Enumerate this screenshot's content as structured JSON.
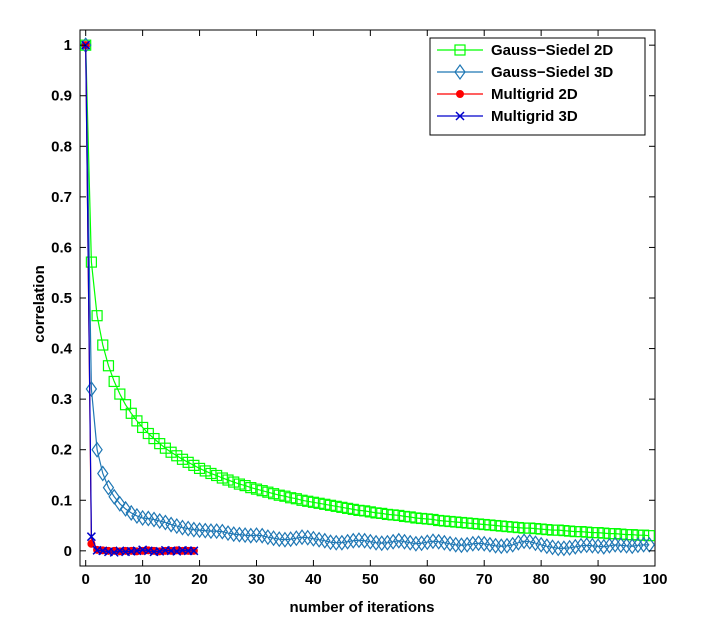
{
  "chart_data": {
    "type": "line",
    "title": "",
    "xlabel": "number of iterations",
    "ylabel": "correlation",
    "xlim": [
      -1,
      100
    ],
    "ylim": [
      -0.03,
      1.03
    ],
    "xticks": [
      "0",
      "10",
      "20",
      "30",
      "40",
      "50",
      "60",
      "70",
      "80",
      "90",
      "100"
    ],
    "yticks": [
      "0",
      "0.1",
      "0.2",
      "0.3",
      "0.4",
      "0.5",
      "0.6",
      "0.7",
      "0.8",
      "0.9",
      "1"
    ],
    "grid": false,
    "legend_position": "top-right",
    "series": [
      {
        "name": "Gauss−Siedel 2D",
        "color": "#00ff00",
        "marker": "square",
        "x": [
          0,
          1,
          2,
          3,
          4,
          5,
          6,
          7,
          8,
          9,
          10,
          11,
          12,
          13,
          14,
          15,
          16,
          17,
          18,
          19,
          20,
          21,
          22,
          23,
          24,
          25,
          26,
          27,
          28,
          29,
          30,
          31,
          32,
          33,
          34,
          35,
          36,
          37,
          38,
          39,
          40,
          41,
          42,
          43,
          44,
          45,
          46,
          47,
          48,
          49,
          50,
          51,
          52,
          53,
          54,
          55,
          56,
          57,
          58,
          59,
          60,
          61,
          62,
          63,
          64,
          65,
          66,
          67,
          68,
          69,
          70,
          71,
          72,
          73,
          74,
          75,
          76,
          77,
          78,
          79,
          80,
          81,
          82,
          83,
          84,
          85,
          86,
          87,
          88,
          89,
          90,
          91,
          92,
          93,
          94,
          95,
          96,
          97,
          98,
          99
        ],
        "y": [
          1.0,
          0.571,
          0.465,
          0.407,
          0.366,
          0.335,
          0.31,
          0.289,
          0.272,
          0.257,
          0.244,
          0.232,
          0.222,
          0.212,
          0.203,
          0.195,
          0.188,
          0.181,
          0.175,
          0.169,
          0.163,
          0.158,
          0.153,
          0.149,
          0.144,
          0.14,
          0.136,
          0.132,
          0.129,
          0.125,
          0.122,
          0.119,
          0.116,
          0.113,
          0.11,
          0.108,
          0.105,
          0.103,
          0.1,
          0.098,
          0.096,
          0.094,
          0.092,
          0.09,
          0.088,
          0.086,
          0.084,
          0.082,
          0.08,
          0.079,
          0.077,
          0.075,
          0.074,
          0.072,
          0.071,
          0.07,
          0.068,
          0.067,
          0.065,
          0.064,
          0.063,
          0.062,
          0.06,
          0.059,
          0.058,
          0.057,
          0.056,
          0.055,
          0.054,
          0.053,
          0.052,
          0.051,
          0.05,
          0.049,
          0.048,
          0.047,
          0.046,
          0.045,
          0.045,
          0.044,
          0.043,
          0.042,
          0.041,
          0.041,
          0.04,
          0.039,
          0.038,
          0.038,
          0.037,
          0.036,
          0.036,
          0.035,
          0.034,
          0.034,
          0.033,
          0.032,
          0.032,
          0.031,
          0.031,
          0.03
        ]
      },
      {
        "name": "Gauss−Siedel 3D",
        "color": "#1f77b4",
        "marker": "diamond",
        "x": [
          0,
          1,
          2,
          3,
          4,
          5,
          6,
          7,
          8,
          9,
          10,
          11,
          12,
          13,
          14,
          15,
          16,
          17,
          18,
          19,
          20,
          21,
          22,
          23,
          24,
          25,
          26,
          27,
          28,
          29,
          30,
          31,
          32,
          33,
          34,
          35,
          36,
          37,
          38,
          39,
          40,
          41,
          42,
          43,
          44,
          45,
          46,
          47,
          48,
          49,
          50,
          51,
          52,
          53,
          54,
          55,
          56,
          57,
          58,
          59,
          60,
          61,
          62,
          63,
          64,
          65,
          66,
          67,
          68,
          69,
          70,
          71,
          72,
          73,
          74,
          75,
          76,
          77,
          78,
          79,
          80,
          81,
          82,
          83,
          84,
          85,
          86,
          87,
          88,
          89,
          90,
          91,
          92,
          93,
          94,
          95,
          96,
          97,
          98,
          99
        ],
        "y": [
          1.0,
          0.32,
          0.2,
          0.153,
          0.125,
          0.107,
          0.093,
          0.083,
          0.075,
          0.069,
          0.065,
          0.064,
          0.062,
          0.059,
          0.056,
          0.052,
          0.049,
          0.046,
          0.044,
          0.042,
          0.041,
          0.04,
          0.039,
          0.039,
          0.038,
          0.035,
          0.033,
          0.032,
          0.031,
          0.03,
          0.031,
          0.03,
          0.027,
          0.025,
          0.023,
          0.022,
          0.023,
          0.025,
          0.027,
          0.026,
          0.024,
          0.022,
          0.02,
          0.017,
          0.016,
          0.016,
          0.018,
          0.02,
          0.021,
          0.02,
          0.018,
          0.016,
          0.015,
          0.016,
          0.018,
          0.02,
          0.018,
          0.016,
          0.014,
          0.015,
          0.017,
          0.019,
          0.018,
          0.016,
          0.014,
          0.012,
          0.011,
          0.012,
          0.014,
          0.015,
          0.014,
          0.012,
          0.01,
          0.009,
          0.01,
          0.012,
          0.016,
          0.019,
          0.018,
          0.015,
          0.012,
          0.009,
          0.007,
          0.005,
          0.005,
          0.006,
          0.008,
          0.01,
          0.011,
          0.01,
          0.009,
          0.008,
          0.01,
          0.012,
          0.011,
          0.01,
          0.009,
          0.011,
          0.012,
          0.012
        ]
      },
      {
        "name": "Multigrid 2D",
        "color": "#ff0000",
        "marker": "dot",
        "x": [
          0,
          1,
          2,
          3,
          4,
          5,
          6,
          7,
          8,
          9,
          10,
          11,
          12,
          13,
          14,
          15,
          16,
          17,
          18,
          19
        ],
        "y": [
          1.0,
          0.014,
          0.002,
          0.001,
          0.0,
          0.0,
          -0.001,
          0.0,
          0.0,
          -0.001,
          0.0,
          0.001,
          0.0,
          -0.001,
          0.0,
          0.0,
          0.001,
          0.0,
          0.0,
          0.0
        ]
      },
      {
        "name": "Multigrid 3D",
        "color": "#0000cc",
        "marker": "x",
        "x": [
          0,
          1,
          2,
          3,
          4,
          5,
          6,
          7,
          8,
          9,
          10,
          11,
          12,
          13,
          14,
          15,
          16,
          17,
          18,
          19
        ],
        "y": [
          1.0,
          0.028,
          0.001,
          0.0,
          -0.002,
          -0.003,
          0.0,
          -0.002,
          -0.001,
          0.0,
          0.002,
          0.0,
          -0.002,
          -0.001,
          0.001,
          0.0,
          -0.001,
          0.001,
          0.0,
          0.0
        ]
      }
    ]
  }
}
